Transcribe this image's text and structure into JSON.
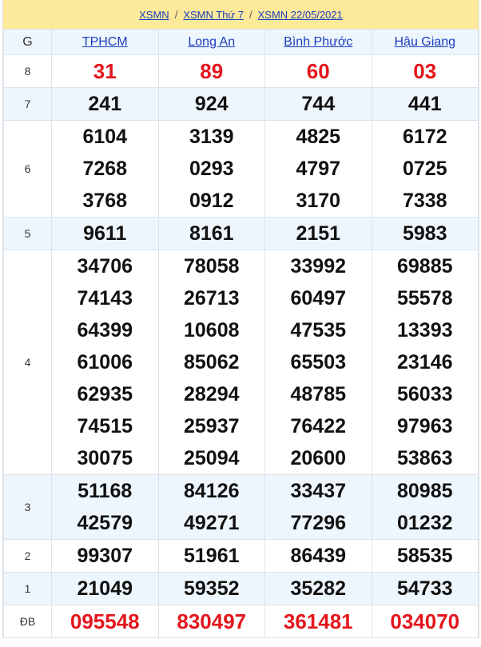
{
  "breadcrumb": [
    "XSMN",
    "XSMN Thứ 7",
    "XSMN 22/05/2021"
  ],
  "header": {
    "prize": "G",
    "provinces": [
      "TPHCM",
      "Long An",
      "Bình Phước",
      "Hậu Giang"
    ]
  },
  "colors": {
    "highlight": "#e4161c",
    "link": "#1a3dbd",
    "banner": "#fde99a",
    "alt_row": "#eef6fd"
  },
  "rows": [
    {
      "label": "8",
      "red": true,
      "alt": false,
      "cols": [
        [
          "31"
        ],
        [
          "89"
        ],
        [
          "60"
        ],
        [
          "03"
        ]
      ]
    },
    {
      "label": "7",
      "alt": true,
      "cols": [
        [
          "241"
        ],
        [
          "924"
        ],
        [
          "744"
        ],
        [
          "441"
        ]
      ]
    },
    {
      "label": "6",
      "alt": false,
      "cols": [
        [
          "6104",
          "7268",
          "3768"
        ],
        [
          "3139",
          "0293",
          "0912"
        ],
        [
          "4825",
          "4797",
          "3170"
        ],
        [
          "6172",
          "0725",
          "7338"
        ]
      ]
    },
    {
      "label": "5",
      "alt": true,
      "cols": [
        [
          "9611"
        ],
        [
          "8161"
        ],
        [
          "2151"
        ],
        [
          "5983"
        ]
      ]
    },
    {
      "label": "4",
      "alt": false,
      "cols": [
        [
          "34706",
          "74143",
          "64399",
          "61006",
          "62935",
          "74515",
          "30075"
        ],
        [
          "78058",
          "26713",
          "10608",
          "85062",
          "28294",
          "25937",
          "25094"
        ],
        [
          "33992",
          "60497",
          "47535",
          "65503",
          "48785",
          "76422",
          "20600"
        ],
        [
          "69885",
          "55578",
          "13393",
          "23146",
          "56033",
          "97963",
          "53863"
        ]
      ]
    },
    {
      "label": "3",
      "alt": true,
      "cols": [
        [
          "51168",
          "42579"
        ],
        [
          "84126",
          "49271"
        ],
        [
          "33437",
          "77296"
        ],
        [
          "80985",
          "01232"
        ]
      ]
    },
    {
      "label": "2",
      "alt": false,
      "cols": [
        [
          "99307"
        ],
        [
          "51961"
        ],
        [
          "86439"
        ],
        [
          "58535"
        ]
      ]
    },
    {
      "label": "1",
      "alt": true,
      "cols": [
        [
          "21049"
        ],
        [
          "59352"
        ],
        [
          "35282"
        ],
        [
          "54733"
        ]
      ]
    },
    {
      "label": "ĐB",
      "red": true,
      "alt": false,
      "cols": [
        [
          "095548"
        ],
        [
          "830497"
        ],
        [
          "361481"
        ],
        [
          "034070"
        ]
      ]
    }
  ]
}
